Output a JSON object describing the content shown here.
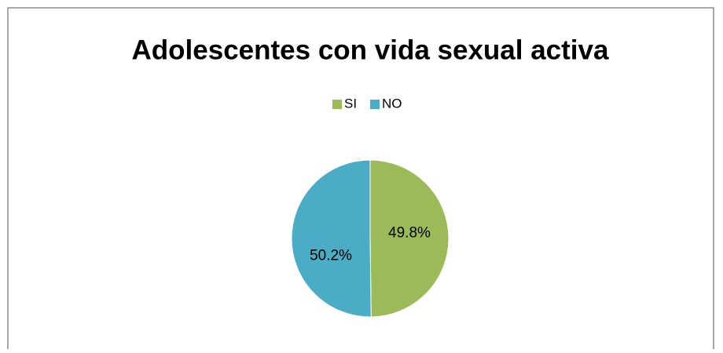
{
  "chart_data": {
    "type": "pie",
    "title": "Adolescentes con vida sexual activa",
    "categories": [
      "SI",
      "NO"
    ],
    "values": [
      49.8,
      50.2
    ],
    "value_labels": [
      "49.8%",
      "50.2%"
    ],
    "colors": [
      "#9bbb59",
      "#4bacc6"
    ],
    "legend": "top"
  }
}
